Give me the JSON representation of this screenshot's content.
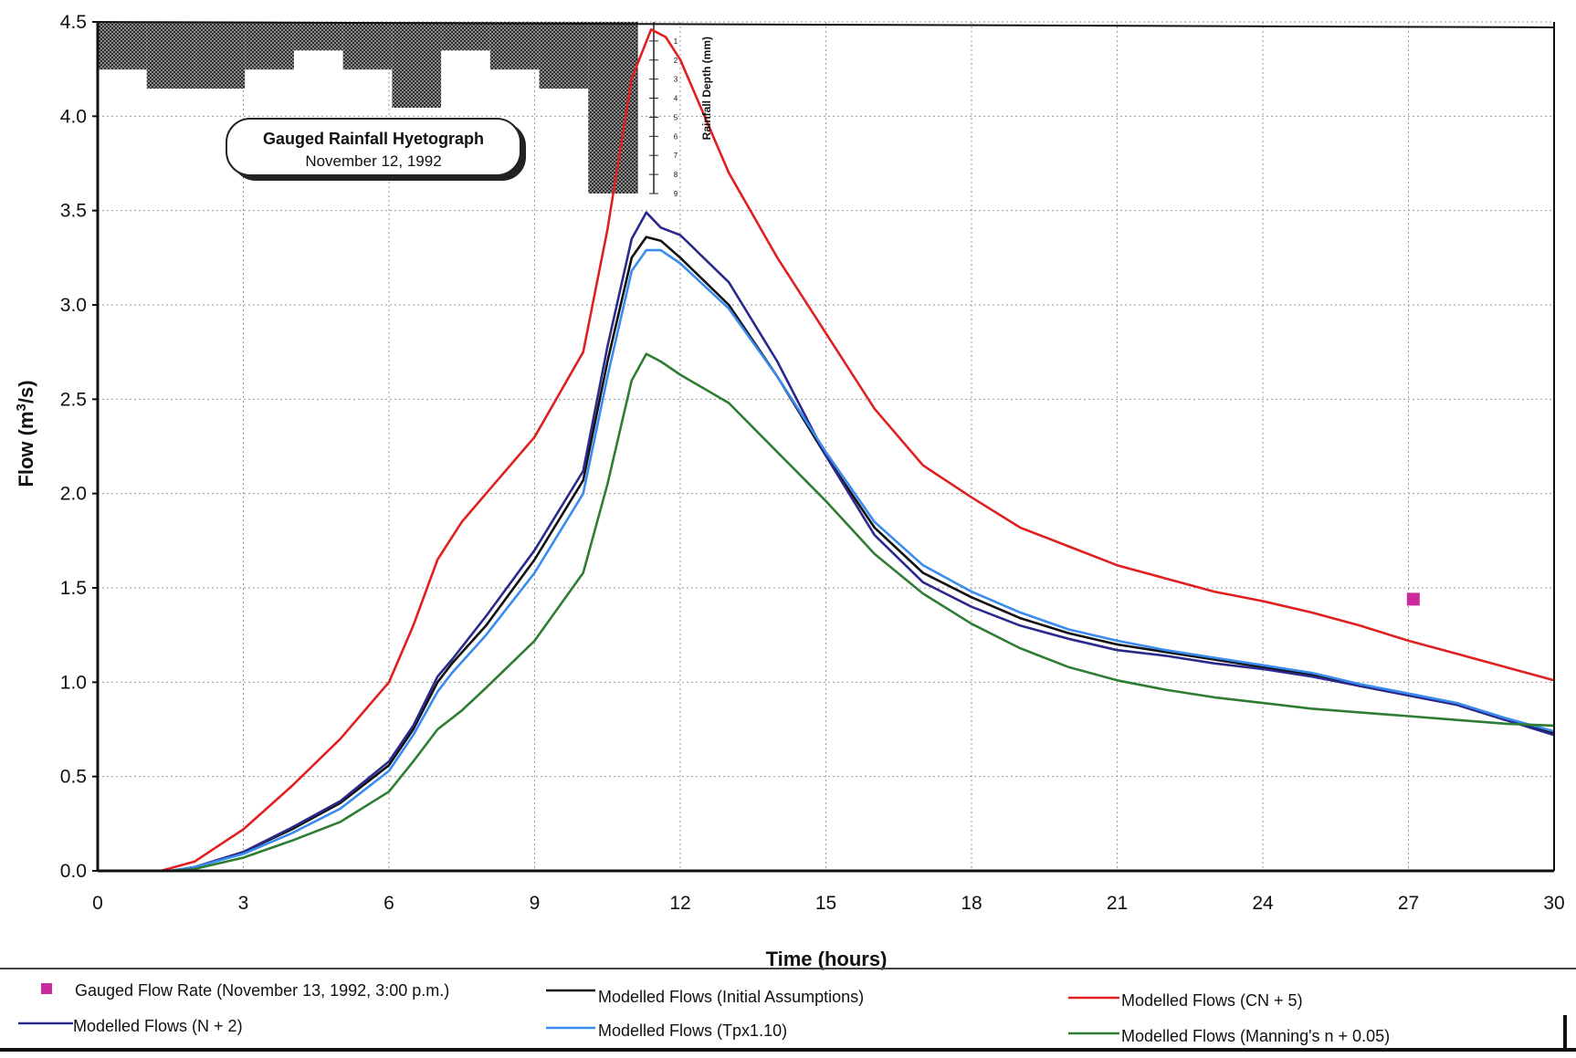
{
  "chart_data": {
    "type": "line",
    "xlabel": "Time (hours)",
    "ylabel": "Flow (m",
    "ylabel_sup": "3",
    "ylabel_end": "/s)",
    "xlim": [
      0,
      30
    ],
    "ylim": [
      0,
      4.5
    ],
    "x_ticks": [
      "0",
      "3",
      "6",
      "9",
      "12",
      "15",
      "18",
      "21",
      "24",
      "27",
      "30"
    ],
    "y_ticks": [
      "0.0",
      "0.5",
      "1.0",
      "1.5",
      "2.0",
      "2.5",
      "3.0",
      "3.5",
      "4.0",
      "4.5"
    ],
    "grid": true,
    "legend_position": "bottom",
    "series": [
      {
        "name": "Modelled Flows (Initial Assumptions)",
        "color": "#111111",
        "points": [
          [
            0,
            0
          ],
          [
            1.5,
            0
          ],
          [
            2,
            0.02
          ],
          [
            3,
            0.1
          ],
          [
            4,
            0.22
          ],
          [
            5,
            0.36
          ],
          [
            6,
            0.56
          ],
          [
            6.5,
            0.75
          ],
          [
            7,
            1.0
          ],
          [
            7.3,
            1.1
          ],
          [
            8,
            1.3
          ],
          [
            9,
            1.65
          ],
          [
            10,
            2.07
          ],
          [
            10.5,
            2.7
          ],
          [
            11,
            3.25
          ],
          [
            11.3,
            3.36
          ],
          [
            11.6,
            3.34
          ],
          [
            12,
            3.25
          ],
          [
            13,
            3.0
          ],
          [
            14,
            2.62
          ],
          [
            15,
            2.2
          ],
          [
            16,
            1.82
          ],
          [
            17,
            1.58
          ],
          [
            18,
            1.45
          ],
          [
            19,
            1.34
          ],
          [
            20,
            1.26
          ],
          [
            21,
            1.2
          ],
          [
            22,
            1.16
          ],
          [
            23,
            1.12
          ],
          [
            24,
            1.08
          ],
          [
            25,
            1.04
          ],
          [
            26,
            0.98
          ],
          [
            27,
            0.93
          ],
          [
            28,
            0.88
          ],
          [
            29,
            0.8
          ],
          [
            30,
            0.73
          ]
        ]
      },
      {
        "name": "Modelled Flows (CN + 5)",
        "color": "#e02020",
        "points": [
          [
            0,
            0
          ],
          [
            1.3,
            0
          ],
          [
            2,
            0.05
          ],
          [
            3,
            0.22
          ],
          [
            4,
            0.45
          ],
          [
            5,
            0.7
          ],
          [
            6,
            1.0
          ],
          [
            6.5,
            1.3
          ],
          [
            7,
            1.65
          ],
          [
            7.5,
            1.85
          ],
          [
            8,
            2.0
          ],
          [
            9,
            2.3
          ],
          [
            10,
            2.75
          ],
          [
            10.5,
            3.4
          ],
          [
            11,
            4.2
          ],
          [
            11.4,
            4.46
          ],
          [
            11.7,
            4.42
          ],
          [
            12,
            4.3
          ],
          [
            13,
            3.7
          ],
          [
            14,
            3.25
          ],
          [
            15,
            2.85
          ],
          [
            16,
            2.45
          ],
          [
            17,
            2.15
          ],
          [
            18,
            1.98
          ],
          [
            19,
            1.82
          ],
          [
            20,
            1.72
          ],
          [
            21,
            1.62
          ],
          [
            22,
            1.55
          ],
          [
            23,
            1.48
          ],
          [
            24,
            1.43
          ],
          [
            25,
            1.37
          ],
          [
            26,
            1.3
          ],
          [
            27,
            1.22
          ],
          [
            28,
            1.15
          ],
          [
            29,
            1.08
          ],
          [
            30,
            1.01
          ]
        ]
      },
      {
        "name": "Modelled Flows (N + 2)",
        "color": "#2b2a8c",
        "points": [
          [
            0,
            0
          ],
          [
            1.5,
            0
          ],
          [
            2,
            0.02
          ],
          [
            3,
            0.1
          ],
          [
            4,
            0.23
          ],
          [
            5,
            0.37
          ],
          [
            6,
            0.58
          ],
          [
            6.5,
            0.77
          ],
          [
            7,
            1.03
          ],
          [
            7.3,
            1.12
          ],
          [
            8,
            1.35
          ],
          [
            9,
            1.7
          ],
          [
            10,
            2.12
          ],
          [
            10.5,
            2.78
          ],
          [
            11,
            3.35
          ],
          [
            11.3,
            3.49
          ],
          [
            11.6,
            3.41
          ],
          [
            12,
            3.37
          ],
          [
            13,
            3.12
          ],
          [
            14,
            2.7
          ],
          [
            15,
            2.2
          ],
          [
            16,
            1.78
          ],
          [
            17,
            1.53
          ],
          [
            18,
            1.4
          ],
          [
            19,
            1.3
          ],
          [
            20,
            1.23
          ],
          [
            21,
            1.17
          ],
          [
            22,
            1.14
          ],
          [
            23,
            1.1
          ],
          [
            24,
            1.07
          ],
          [
            25,
            1.03
          ],
          [
            26,
            0.98
          ],
          [
            27,
            0.93
          ],
          [
            28,
            0.88
          ],
          [
            29,
            0.8
          ],
          [
            30,
            0.72
          ]
        ]
      },
      {
        "name": "Modelled Flows (Tpx1.10)",
        "color": "#3a8bf0",
        "points": [
          [
            0,
            0
          ],
          [
            1.5,
            0
          ],
          [
            2,
            0.02
          ],
          [
            3,
            0.09
          ],
          [
            4,
            0.2
          ],
          [
            5,
            0.33
          ],
          [
            6,
            0.53
          ],
          [
            6.5,
            0.72
          ],
          [
            7,
            0.95
          ],
          [
            7.3,
            1.05
          ],
          [
            8,
            1.25
          ],
          [
            9,
            1.58
          ],
          [
            10,
            2.0
          ],
          [
            10.5,
            2.62
          ],
          [
            11,
            3.18
          ],
          [
            11.3,
            3.29
          ],
          [
            11.6,
            3.29
          ],
          [
            12,
            3.22
          ],
          [
            13,
            2.98
          ],
          [
            14,
            2.62
          ],
          [
            15,
            2.22
          ],
          [
            16,
            1.85
          ],
          [
            17,
            1.62
          ],
          [
            18,
            1.48
          ],
          [
            19,
            1.37
          ],
          [
            20,
            1.28
          ],
          [
            21,
            1.22
          ],
          [
            22,
            1.17
          ],
          [
            23,
            1.13
          ],
          [
            24,
            1.09
          ],
          [
            25,
            1.05
          ],
          [
            26,
            0.99
          ],
          [
            27,
            0.94
          ],
          [
            28,
            0.89
          ],
          [
            29,
            0.81
          ],
          [
            30,
            0.74
          ]
        ]
      },
      {
        "name": "Modelled Flows (Manning's n + 0.05)",
        "color": "#2e7d32",
        "points": [
          [
            0,
            0
          ],
          [
            1.5,
            0
          ],
          [
            2,
            0.01
          ],
          [
            3,
            0.07
          ],
          [
            4,
            0.16
          ],
          [
            5,
            0.26
          ],
          [
            6,
            0.42
          ],
          [
            6.5,
            0.58
          ],
          [
            7,
            0.75
          ],
          [
            7.5,
            0.85
          ],
          [
            8,
            0.97
          ],
          [
            9,
            1.22
          ],
          [
            10,
            1.58
          ],
          [
            10.5,
            2.05
          ],
          [
            11,
            2.6
          ],
          [
            11.3,
            2.74
          ],
          [
            11.6,
            2.7
          ],
          [
            12,
            2.63
          ],
          [
            13,
            2.48
          ],
          [
            14,
            2.22
          ],
          [
            15,
            1.96
          ],
          [
            16,
            1.68
          ],
          [
            17,
            1.47
          ],
          [
            18,
            1.31
          ],
          [
            19,
            1.18
          ],
          [
            20,
            1.08
          ],
          [
            21,
            1.01
          ],
          [
            22,
            0.96
          ],
          [
            23,
            0.92
          ],
          [
            24,
            0.89
          ],
          [
            25,
            0.86
          ],
          [
            26,
            0.84
          ],
          [
            27,
            0.82
          ],
          [
            28,
            0.8
          ],
          [
            29,
            0.78
          ],
          [
            30,
            0.77
          ]
        ]
      }
    ],
    "gauged": {
      "name": "Gauged Flow Rate (November 13, 1992, 3:00 p.m.)",
      "color": "#cc2a9a",
      "x": 27.1,
      "y": 1.44
    },
    "hyetograph": {
      "title": "Gauged Rainfall Hyetograph",
      "subtitle": "November 12, 1992",
      "axis_label": "Rainfall Depth (mm)",
      "ticks": [
        "1",
        "2",
        "3",
        "4",
        "5",
        "6",
        "7",
        "8",
        "9"
      ],
      "depth_max": 9,
      "x_range": [
        0,
        11
      ],
      "bars": [
        {
          "x0": 0,
          "x1": 1,
          "depth": 2.5
        },
        {
          "x0": 1,
          "x1": 2,
          "depth": 3.5
        },
        {
          "x0": 2,
          "x1": 3,
          "depth": 3.5
        },
        {
          "x0": 3,
          "x1": 4,
          "depth": 2.5
        },
        {
          "x0": 4,
          "x1": 5,
          "depth": 1.5
        },
        {
          "x0": 5,
          "x1": 6,
          "depth": 2.5
        },
        {
          "x0": 6,
          "x1": 7,
          "depth": 4.5
        },
        {
          "x0": 7,
          "x1": 8,
          "depth": 1.5
        },
        {
          "x0": 8,
          "x1": 9,
          "depth": 2.5
        },
        {
          "x0": 9,
          "x1": 10,
          "depth": 3.5
        },
        {
          "x0": 10,
          "x1": 11,
          "depth": 9
        }
      ]
    }
  }
}
